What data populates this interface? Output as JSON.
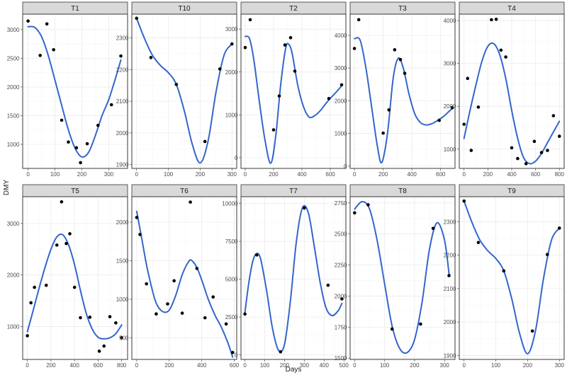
{
  "chart_data": {
    "type": "scatter",
    "layout": "facet_wrap",
    "xlabel": "Days",
    "ylabel": "DMY",
    "point_color": "#000000",
    "line_color": "#3366cc",
    "panels": [
      {
        "name": "T1",
        "xlim": [
          -20,
          370
        ],
        "ylim": [
          580,
          3270
        ],
        "xticks": [
          0,
          100,
          200,
          300
        ],
        "yticks": [
          1000,
          1500,
          2000,
          2500,
          3000
        ],
        "points": [
          [
            0,
            3150
          ],
          [
            45,
            2550
          ],
          [
            70,
            3100
          ],
          [
            95,
            2650
          ],
          [
            125,
            1420
          ],
          [
            150,
            1040
          ],
          [
            180,
            940
          ],
          [
            195,
            680
          ],
          [
            220,
            1010
          ],
          [
            260,
            1330
          ],
          [
            310,
            1690
          ],
          [
            345,
            2540
          ]
        ],
        "curve": [
          [
            0,
            3050
          ],
          [
            25,
            3040
          ],
          [
            50,
            2880
          ],
          [
            75,
            2550
          ],
          [
            100,
            2120
          ],
          [
            125,
            1680
          ],
          [
            150,
            1250
          ],
          [
            175,
            930
          ],
          [
            200,
            780
          ],
          [
            225,
            860
          ],
          [
            250,
            1150
          ],
          [
            275,
            1500
          ],
          [
            300,
            1780
          ],
          [
            325,
            2150
          ],
          [
            345,
            2470
          ]
        ]
      },
      {
        "name": "T10",
        "xlim": [
          -15,
          315
        ],
        "ylim": [
          1888,
          2375
        ],
        "xticks": [
          0,
          100,
          200,
          300
        ],
        "yticks": [
          1900,
          2000,
          2100,
          2200,
          2300
        ],
        "points": [
          [
            0,
            2362
          ],
          [
            45,
            2238
          ],
          [
            125,
            2153
          ],
          [
            215,
            1973
          ],
          [
            262,
            2202
          ],
          [
            300,
            2281
          ]
        ],
        "curve": [
          [
            0,
            2362
          ],
          [
            25,
            2298
          ],
          [
            50,
            2245
          ],
          [
            75,
            2213
          ],
          [
            100,
            2190
          ],
          [
            125,
            2153
          ],
          [
            150,
            2070
          ],
          [
            175,
            1965
          ],
          [
            200,
            1905
          ],
          [
            225,
            1975
          ],
          [
            250,
            2130
          ],
          [
            275,
            2245
          ],
          [
            300,
            2281
          ]
        ]
      },
      {
        "name": "T2",
        "xlim": [
          -30,
          710
        ],
        "ylim": [
          -250,
          3350
        ],
        "xticks": [
          0,
          200,
          400,
          600
        ],
        "yticks": [
          0,
          1000,
          2000,
          3000
        ],
        "points": [
          [
            0,
            2570
          ],
          [
            35,
            3220
          ],
          [
            200,
            650
          ],
          [
            240,
            1440
          ],
          [
            280,
            2630
          ],
          [
            320,
            2800
          ],
          [
            350,
            2020
          ],
          [
            590,
            1380
          ],
          [
            680,
            1700
          ]
        ],
        "curve": [
          [
            0,
            2830
          ],
          [
            30,
            2780
          ],
          [
            60,
            2300
          ],
          [
            100,
            1300
          ],
          [
            140,
            400
          ],
          [
            180,
            -130
          ],
          [
            215,
            500
          ],
          [
            250,
            1700
          ],
          [
            285,
            2550
          ],
          [
            305,
            2650
          ],
          [
            330,
            2450
          ],
          [
            370,
            1700
          ],
          [
            410,
            1200
          ],
          [
            450,
            950
          ],
          [
            490,
            980
          ],
          [
            530,
            1100
          ],
          [
            570,
            1270
          ],
          [
            610,
            1420
          ],
          [
            650,
            1560
          ],
          [
            680,
            1680
          ]
        ]
      },
      {
        "name": "T3",
        "xlim": [
          -30,
          700
        ],
        "ylim": [
          -70,
          4650
        ],
        "xticks": [
          0,
          200,
          400,
          600
        ],
        "yticks": [
          0,
          1000,
          2000,
          3000,
          4000
        ],
        "points": [
          [
            0,
            3600
          ],
          [
            30,
            4480
          ],
          [
            200,
            1010
          ],
          [
            240,
            1720
          ],
          [
            280,
            3560
          ],
          [
            320,
            3260
          ],
          [
            350,
            2840
          ],
          [
            590,
            1400
          ],
          [
            680,
            1790
          ]
        ],
        "curve": [
          [
            0,
            3900
          ],
          [
            40,
            3850
          ],
          [
            80,
            3000
          ],
          [
            120,
            1800
          ],
          [
            160,
            600
          ],
          [
            190,
            110
          ],
          [
            230,
            1000
          ],
          [
            270,
            2700
          ],
          [
            305,
            3300
          ],
          [
            340,
            3000
          ],
          [
            380,
            2200
          ],
          [
            420,
            1600
          ],
          [
            460,
            1330
          ],
          [
            500,
            1260
          ],
          [
            540,
            1300
          ],
          [
            580,
            1400
          ],
          [
            620,
            1520
          ],
          [
            660,
            1680
          ],
          [
            680,
            1760
          ]
        ]
      },
      {
        "name": "T4",
        "xlim": [
          -40,
          840
        ],
        "ylim": [
          550,
          4150
        ],
        "xticks": [
          0,
          200,
          400,
          600,
          800
        ],
        "yticks": [
          1000,
          2000,
          3000,
          4000
        ],
        "points": [
          [
            0,
            1580
          ],
          [
            30,
            2650
          ],
          [
            60,
            970
          ],
          [
            120,
            1980
          ],
          [
            230,
            4020
          ],
          [
            270,
            4030
          ],
          [
            310,
            3310
          ],
          [
            350,
            3150
          ],
          [
            400,
            1030
          ],
          [
            450,
            780
          ],
          [
            520,
            660
          ],
          [
            590,
            1180
          ],
          [
            650,
            920
          ],
          [
            700,
            970
          ],
          [
            750,
            1780
          ],
          [
            800,
            1300
          ]
        ],
        "curve": [
          [
            0,
            1250
          ],
          [
            50,
            1900
          ],
          [
            100,
            2500
          ],
          [
            150,
            3050
          ],
          [
            200,
            3400
          ],
          [
            250,
            3460
          ],
          [
            300,
            3200
          ],
          [
            350,
            2650
          ],
          [
            400,
            1900
          ],
          [
            450,
            1250
          ],
          [
            500,
            800
          ],
          [
            550,
            660
          ],
          [
            600,
            720
          ],
          [
            650,
            900
          ],
          [
            700,
            1150
          ],
          [
            750,
            1400
          ],
          [
            800,
            1650
          ]
        ]
      },
      {
        "name": "T5",
        "xlim": [
          -40,
          850
        ],
        "ylim": [
          360,
          3520
        ],
        "xticks": [
          0,
          200,
          400,
          600,
          800
        ],
        "yticks": [
          1000,
          2000,
          3000
        ],
        "points": [
          [
            0,
            820
          ],
          [
            30,
            1460
          ],
          [
            60,
            1760
          ],
          [
            160,
            1800
          ],
          [
            250,
            2580
          ],
          [
            290,
            3420
          ],
          [
            330,
            2610
          ],
          [
            360,
            2800
          ],
          [
            400,
            1760
          ],
          [
            450,
            1170
          ],
          [
            530,
            1180
          ],
          [
            610,
            520
          ],
          [
            650,
            620
          ],
          [
            700,
            1190
          ],
          [
            750,
            1070
          ],
          [
            800,
            780
          ]
        ],
        "curve": [
          [
            0,
            900
          ],
          [
            50,
            1320
          ],
          [
            100,
            1750
          ],
          [
            150,
            2150
          ],
          [
            200,
            2500
          ],
          [
            250,
            2740
          ],
          [
            300,
            2780
          ],
          [
            350,
            2580
          ],
          [
            400,
            2200
          ],
          [
            450,
            1700
          ],
          [
            500,
            1250
          ],
          [
            550,
            950
          ],
          [
            600,
            790
          ],
          [
            650,
            760
          ],
          [
            700,
            780
          ],
          [
            750,
            860
          ],
          [
            800,
            1030
          ]
        ]
      },
      {
        "name": "T6",
        "xlim": [
          -30,
          615
        ],
        "ylim": [
          220,
          2330
        ],
        "xticks": [
          0,
          200,
          400,
          600
        ],
        "yticks": [
          500,
          1000,
          1500,
          2000
        ],
        "points": [
          [
            0,
            2060
          ],
          [
            20,
            1840
          ],
          [
            60,
            1200
          ],
          [
            120,
            810
          ],
          [
            190,
            940
          ],
          [
            230,
            1240
          ],
          [
            280,
            820
          ],
          [
            330,
            2260
          ],
          [
            370,
            1400
          ],
          [
            420,
            760
          ],
          [
            470,
            1030
          ],
          [
            550,
            680
          ],
          [
            590,
            310
          ]
        ],
        "curve": [
          [
            0,
            2140
          ],
          [
            30,
            1800
          ],
          [
            60,
            1450
          ],
          [
            90,
            1170
          ],
          [
            120,
            950
          ],
          [
            160,
            840
          ],
          [
            200,
            860
          ],
          [
            240,
            1050
          ],
          [
            280,
            1320
          ],
          [
            320,
            1490
          ],
          [
            340,
            1500
          ],
          [
            370,
            1410
          ],
          [
            400,
            1250
          ],
          [
            440,
            1000
          ],
          [
            480,
            800
          ],
          [
            520,
            640
          ],
          [
            560,
            440
          ],
          [
            590,
            250
          ]
        ]
      },
      {
        "name": "T7",
        "xlim": [
          -20,
          510
        ],
        "ylim": [
          -300,
          10450
        ],
        "xticks": [
          0,
          100,
          200,
          300,
          400,
          500
        ],
        "yticks": [
          0,
          2500,
          5000,
          7500,
          10000
        ],
        "points": [
          [
            0,
            2700
          ],
          [
            60,
            6600
          ],
          [
            180,
            200
          ],
          [
            300,
            9700
          ],
          [
            420,
            4600
          ],
          [
            490,
            3700
          ]
        ],
        "curve": [
          [
            0,
            2800
          ],
          [
            20,
            4800
          ],
          [
            40,
            6200
          ],
          [
            60,
            6700
          ],
          [
            80,
            6300
          ],
          [
            110,
            4200
          ],
          [
            140,
            1700
          ],
          [
            170,
            300
          ],
          [
            200,
            700
          ],
          [
            230,
            3600
          ],
          [
            260,
            7500
          ],
          [
            290,
            9700
          ],
          [
            320,
            9400
          ],
          [
            350,
            7200
          ],
          [
            380,
            4800
          ],
          [
            410,
            3100
          ],
          [
            440,
            2600
          ],
          [
            470,
            2900
          ],
          [
            490,
            3400
          ]
        ]
      },
      {
        "name": "T8",
        "xlim": [
          -15,
          335
        ],
        "ylim": [
          1490,
          2800
        ],
        "xticks": [
          0,
          100,
          200,
          300
        ],
        "yticks": [
          1500,
          1750,
          2000,
          2250,
          2500,
          2750
        ],
        "points": [
          [
            0,
            2670
          ],
          [
            45,
            2735
          ],
          [
            125,
            1735
          ],
          [
            220,
            1775
          ],
          [
            262,
            2545
          ],
          [
            315,
            2165
          ]
        ],
        "curve": [
          [
            0,
            2700
          ],
          [
            25,
            2760
          ],
          [
            50,
            2700
          ],
          [
            75,
            2450
          ],
          [
            100,
            2100
          ],
          [
            125,
            1760
          ],
          [
            150,
            1580
          ],
          [
            175,
            1545
          ],
          [
            200,
            1650
          ],
          [
            225,
            1950
          ],
          [
            250,
            2380
          ],
          [
            275,
            2590
          ],
          [
            300,
            2450
          ],
          [
            315,
            2180
          ]
        ]
      },
      {
        "name": "T9",
        "xlim": [
          -15,
          315
        ],
        "ylim": [
          1888,
          2375
        ],
        "xticks": [
          0,
          100,
          200,
          300
        ],
        "yticks": [
          1900,
          2000,
          2100,
          2200,
          2300
        ],
        "points": [
          [
            0,
            2362
          ],
          [
            45,
            2238
          ],
          [
            125,
            2153
          ],
          [
            215,
            1973
          ],
          [
            262,
            2202
          ],
          [
            300,
            2281
          ]
        ],
        "curve": [
          [
            0,
            2362
          ],
          [
            25,
            2298
          ],
          [
            50,
            2245
          ],
          [
            75,
            2213
          ],
          [
            100,
            2190
          ],
          [
            125,
            2153
          ],
          [
            150,
            2070
          ],
          [
            175,
            1965
          ],
          [
            200,
            1905
          ],
          [
            225,
            1975
          ],
          [
            250,
            2130
          ],
          [
            275,
            2245
          ],
          [
            300,
            2281
          ]
        ]
      }
    ]
  }
}
